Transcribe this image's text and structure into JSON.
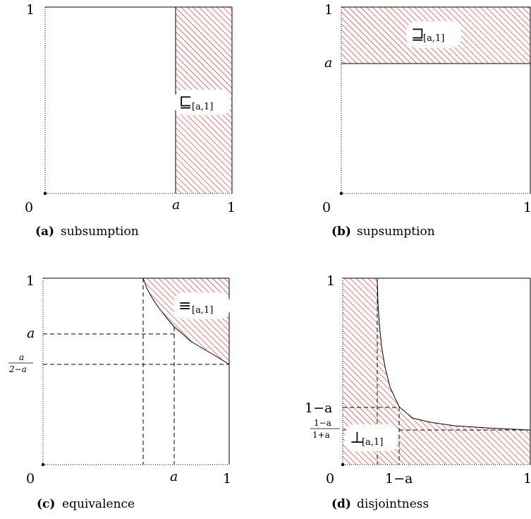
{
  "panels": {
    "a": {
      "caption_letter": "(a)",
      "caption_text": "subsumption",
      "symbol": "⊑",
      "symbol_sub": "[a,1]",
      "y_top": "1",
      "origin": "0",
      "x_a": "a",
      "x_right": "1"
    },
    "b": {
      "caption_letter": "(b)",
      "caption_text": "supsumption",
      "symbol": "⊒",
      "symbol_sub": "[a,1]",
      "y_top": "1",
      "y_a": "a",
      "origin": "0",
      "x_right": "1"
    },
    "c": {
      "caption_letter": "(c)",
      "caption_text": "equivalence",
      "symbol": "≡",
      "symbol_sub": "[a,1]",
      "y_top": "1",
      "y_a": "a",
      "y_frac_num": "a",
      "y_frac_den": "2−a",
      "origin": "0",
      "x_a": "a",
      "x_right": "1"
    },
    "d": {
      "caption_letter": "(d)",
      "caption_text": "disjointness",
      "symbol": "⊥",
      "symbol_sub": "[a,1]",
      "y_top": "1",
      "y_1ma": "1−a",
      "y_frac_num": "1−a",
      "y_frac_den": "1+a",
      "origin": "0",
      "x_1ma": "1−a",
      "x_right": "1"
    }
  },
  "colors": {
    "hatch": "#e8201e",
    "line": "#000000"
  }
}
